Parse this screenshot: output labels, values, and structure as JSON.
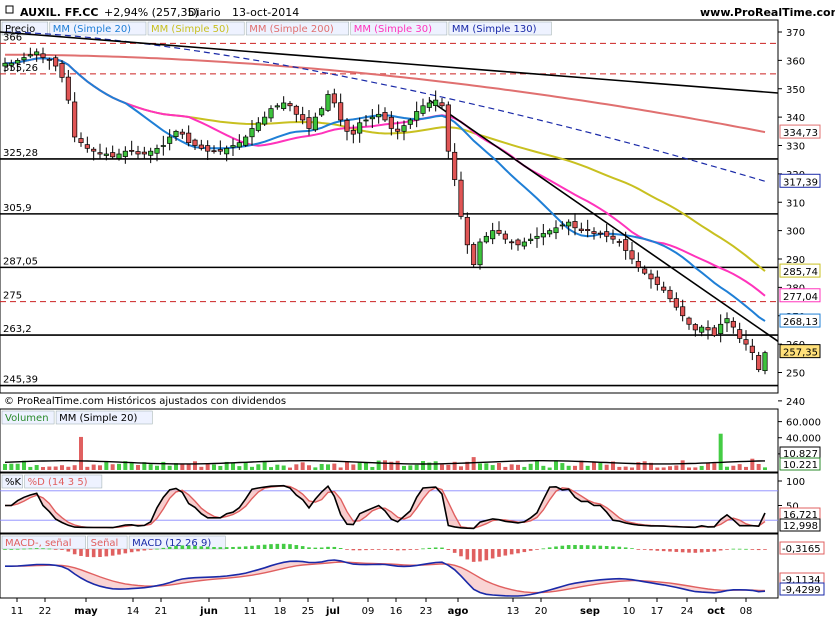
{
  "header": {
    "ticker": "AUXIL. FF.CC",
    "change": "+2,94% (257,35)",
    "period": "Diario",
    "date": "13-oct-2014",
    "site": "www.ProRealTime.com"
  },
  "price_panel": {
    "legend": [
      {
        "label": "Precio",
        "color": "#000000"
      },
      {
        "label": "MM (Simple 20)",
        "color": "#1f7fd6"
      },
      {
        "label": "MM (Simple 50)",
        "color": "#c8c020"
      },
      {
        "label": "MM (Simple 200)",
        "color": "#e07070"
      },
      {
        "label": "MM (Simple 30)",
        "color": "#ff33bb"
      },
      {
        "label": "MM (Simple 130)",
        "color": "#1a2aa8"
      }
    ],
    "level_labels": [
      "366",
      "355,26",
      "325,28",
      "305,9",
      "287,05",
      "275",
      "263,2",
      "245,39"
    ],
    "ticks": [
      "370",
      "360",
      "350",
      "340",
      "330",
      "320",
      "310",
      "300",
      "290",
      "280",
      "270",
      "260",
      "250",
      "240"
    ],
    "value_tags": [
      {
        "text": "334,73",
        "color": "#e07070"
      },
      {
        "text": "317,39",
        "color": "#1a2aa8"
      },
      {
        "text": "285,74",
        "color": "#c8c020"
      },
      {
        "text": "277,04",
        "color": "#ff33bb"
      },
      {
        "text": "268,13",
        "color": "#1f7fd6"
      },
      {
        "text": "257,35",
        "color": "#000000"
      }
    ],
    "footer": "© ProRealTime.com Históricos ajustados con dividendos"
  },
  "volume_panel": {
    "legend": [
      "Volumen",
      "MM (Simple 20)"
    ],
    "ticks": [
      "60.000",
      "40.000",
      "20.000"
    ],
    "value_tags": [
      "10.827",
      "10.221"
    ]
  },
  "stoch_panel": {
    "legend": [
      "%K",
      "%D (14 3 5)"
    ],
    "ticks": [
      "100",
      "50"
    ],
    "value_tags": [
      "16,721",
      "12,998"
    ]
  },
  "macd_panel": {
    "legend": [
      "MACD-, señal",
      "Señal",
      "MACD (12 26 9)"
    ],
    "value_tags": [
      "-0,3165",
      "-9,1134",
      "-9,4299"
    ]
  },
  "xaxis": {
    "labels": [
      "11",
      "22",
      "may",
      "14",
      "21",
      "jun",
      "11",
      "18",
      "25",
      "jul",
      "09",
      "16",
      "23",
      "ago",
      "13",
      "20",
      "sep",
      "10",
      "17",
      "24",
      "oct",
      "08"
    ]
  },
  "chart_data": {
    "type": "candlestick",
    "ylim": [
      240,
      372
    ],
    "closes": [
      359,
      359,
      360,
      361,
      362,
      363,
      361,
      360,
      358,
      354,
      346,
      333,
      331,
      329,
      328,
      327,
      327,
      326,
      327,
      328,
      328,
      327,
      327,
      328,
      329,
      330,
      333,
      335,
      334,
      331,
      330,
      329,
      328,
      328,
      328,
      329,
      330,
      331,
      333,
      336,
      338,
      340,
      343,
      344,
      345,
      344,
      341,
      339,
      336,
      340,
      343,
      348,
      345,
      339,
      335,
      334,
      338,
      339,
      340,
      341,
      339,
      336,
      335,
      337,
      339,
      342,
      344,
      345,
      346,
      344,
      328,
      318,
      305,
      295,
      288,
      296,
      298,
      300,
      299,
      297,
      296,
      295,
      296,
      297,
      298,
      299,
      300,
      301,
      302,
      303,
      301,
      300,
      300,
      299,
      299,
      298,
      297,
      296,
      293,
      290,
      287,
      285,
      283,
      281,
      279,
      276,
      273,
      270,
      267,
      265,
      266,
      265,
      263,
      267,
      269,
      266,
      262,
      260,
      257,
      251,
      257
    ],
    "horizontal_levels": [
      366,
      355.26,
      325.28,
      305.9,
      287.05,
      275,
      263.2,
      245.39
    ],
    "ma_last_values": {
      "sma20": 268.13,
      "sma30": 277.04,
      "sma50": 285.74,
      "sma130": 317.39,
      "sma200": 334.73
    }
  }
}
